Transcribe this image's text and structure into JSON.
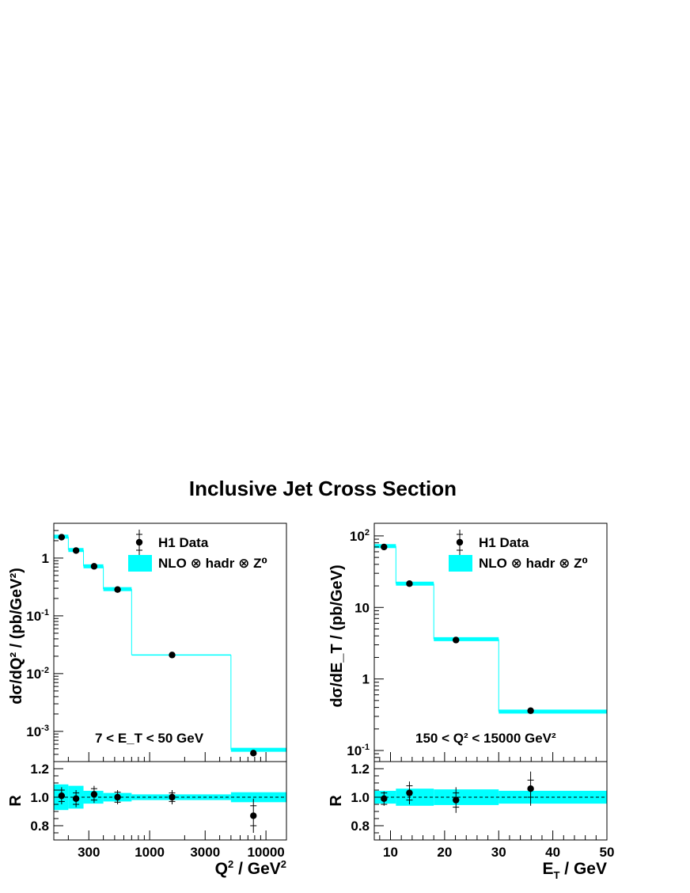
{
  "title": "Inclusive Jet Cross Section",
  "colors": {
    "band": "#00ffff",
    "marker": "#000000",
    "axis": "#000000"
  },
  "chart_data": [
    {
      "type": "scatter",
      "xlabel_main": "Q",
      "xlabel_sup": "2",
      "xlabel_rest": " / GeV",
      "xlabel_sup2": "2",
      "ylabel": "dσ/dQ² / (pb/GeV²)",
      "x_scale": "log",
      "y_scale": "log",
      "xlim": [
        150,
        15000
      ],
      "ylim": [
        0.0003,
        4
      ],
      "xticks": [
        "300",
        "1000",
        "3000",
        "10000"
      ],
      "yticks": [
        "1",
        "10⁻¹",
        "10⁻²",
        "10⁻³"
      ],
      "cut_label": "7 < E_T < 50 GeV",
      "legend": {
        "data": "H1 Data",
        "theory": "NLO ⊗ hadr ⊗ Z⁰",
        "placement": "top-right"
      },
      "bins": [
        {
          "xlow": 150,
          "xhigh": 200,
          "y": 2.3,
          "nlo": 2.35,
          "ratio": 1.01
        },
        {
          "xlow": 200,
          "xhigh": 270,
          "y": 1.35,
          "nlo": 1.38,
          "ratio": 0.99
        },
        {
          "xlow": 270,
          "xhigh": 400,
          "y": 0.72,
          "nlo": 0.72,
          "ratio": 1.02
        },
        {
          "xlow": 400,
          "xhigh": 700,
          "y": 0.285,
          "nlo": 0.29,
          "ratio": 1.0
        },
        {
          "xlow": 700,
          "xhigh": 5000,
          "y": 0.021,
          "nlo": 0.021,
          "ratio": 1.0
        },
        {
          "xlow": 5000,
          "xhigh": 15000,
          "y": 0.00042,
          "nlo": 0.00048,
          "ratio": 0.87
        }
      ],
      "data_x": [
        175,
        233,
        333,
        530,
        1560,
        7800
      ],
      "ratio_panel": {
        "ylabel": "R",
        "ylim": [
          0.7,
          1.25
        ],
        "yticks": [
          "0.8",
          "1.0",
          "1.2"
        ],
        "band_half_width": [
          0.09,
          0.08,
          0.045,
          0.03,
          0.02,
          0.035
        ],
        "err_stat": [
          0.04,
          0.04,
          0.04,
          0.035,
          0.03,
          0.07
        ],
        "err_tot": [
          0.06,
          0.06,
          0.06,
          0.05,
          0.05,
          0.12
        ]
      }
    },
    {
      "type": "scatter",
      "xlabel_main": "E",
      "xlabel_sub": "T",
      "xlabel_rest": " / GeV",
      "ylabel": "dσ/dE_T / (pb/GeV)",
      "x_scale": "linear",
      "y_scale": "log",
      "xlim": [
        7,
        50
      ],
      "ylim": [
        0.07,
        150
      ],
      "xticks": [
        "10",
        "20",
        "30",
        "40",
        "50"
      ],
      "yticks": [
        "10²",
        "10",
        "1",
        "10⁻¹"
      ],
      "cut_label": "150 < Q² < 15000 GeV²",
      "legend": {
        "data": "H1 Data",
        "theory": "NLO ⊗ hadr ⊗ Z⁰",
        "placement": "top-right"
      },
      "bins": [
        {
          "xlow": 7,
          "xhigh": 11,
          "y": 70,
          "nlo": 72,
          "ratio": 0.99
        },
        {
          "xlow": 11,
          "xhigh": 18,
          "y": 21.5,
          "nlo": 21.5,
          "ratio": 1.03
        },
        {
          "xlow": 18,
          "xhigh": 30,
          "y": 3.5,
          "nlo": 3.6,
          "ratio": 0.98
        },
        {
          "xlow": 30,
          "xhigh": 50,
          "y": 0.36,
          "nlo": 0.35,
          "ratio": 1.06
        }
      ],
      "data_x": [
        8.8,
        13.5,
        22.1,
        35.9
      ],
      "ratio_panel": {
        "ylabel": "R",
        "ylim": [
          0.7,
          1.25
        ],
        "yticks": [
          "0.8",
          "1.0",
          "1.2"
        ],
        "band_half_width": [
          0.045,
          0.06,
          0.055,
          0.045
        ],
        "err_stat": [
          0.04,
          0.05,
          0.05,
          0.06
        ],
        "err_tot": [
          0.05,
          0.08,
          0.09,
          0.12
        ]
      }
    }
  ]
}
